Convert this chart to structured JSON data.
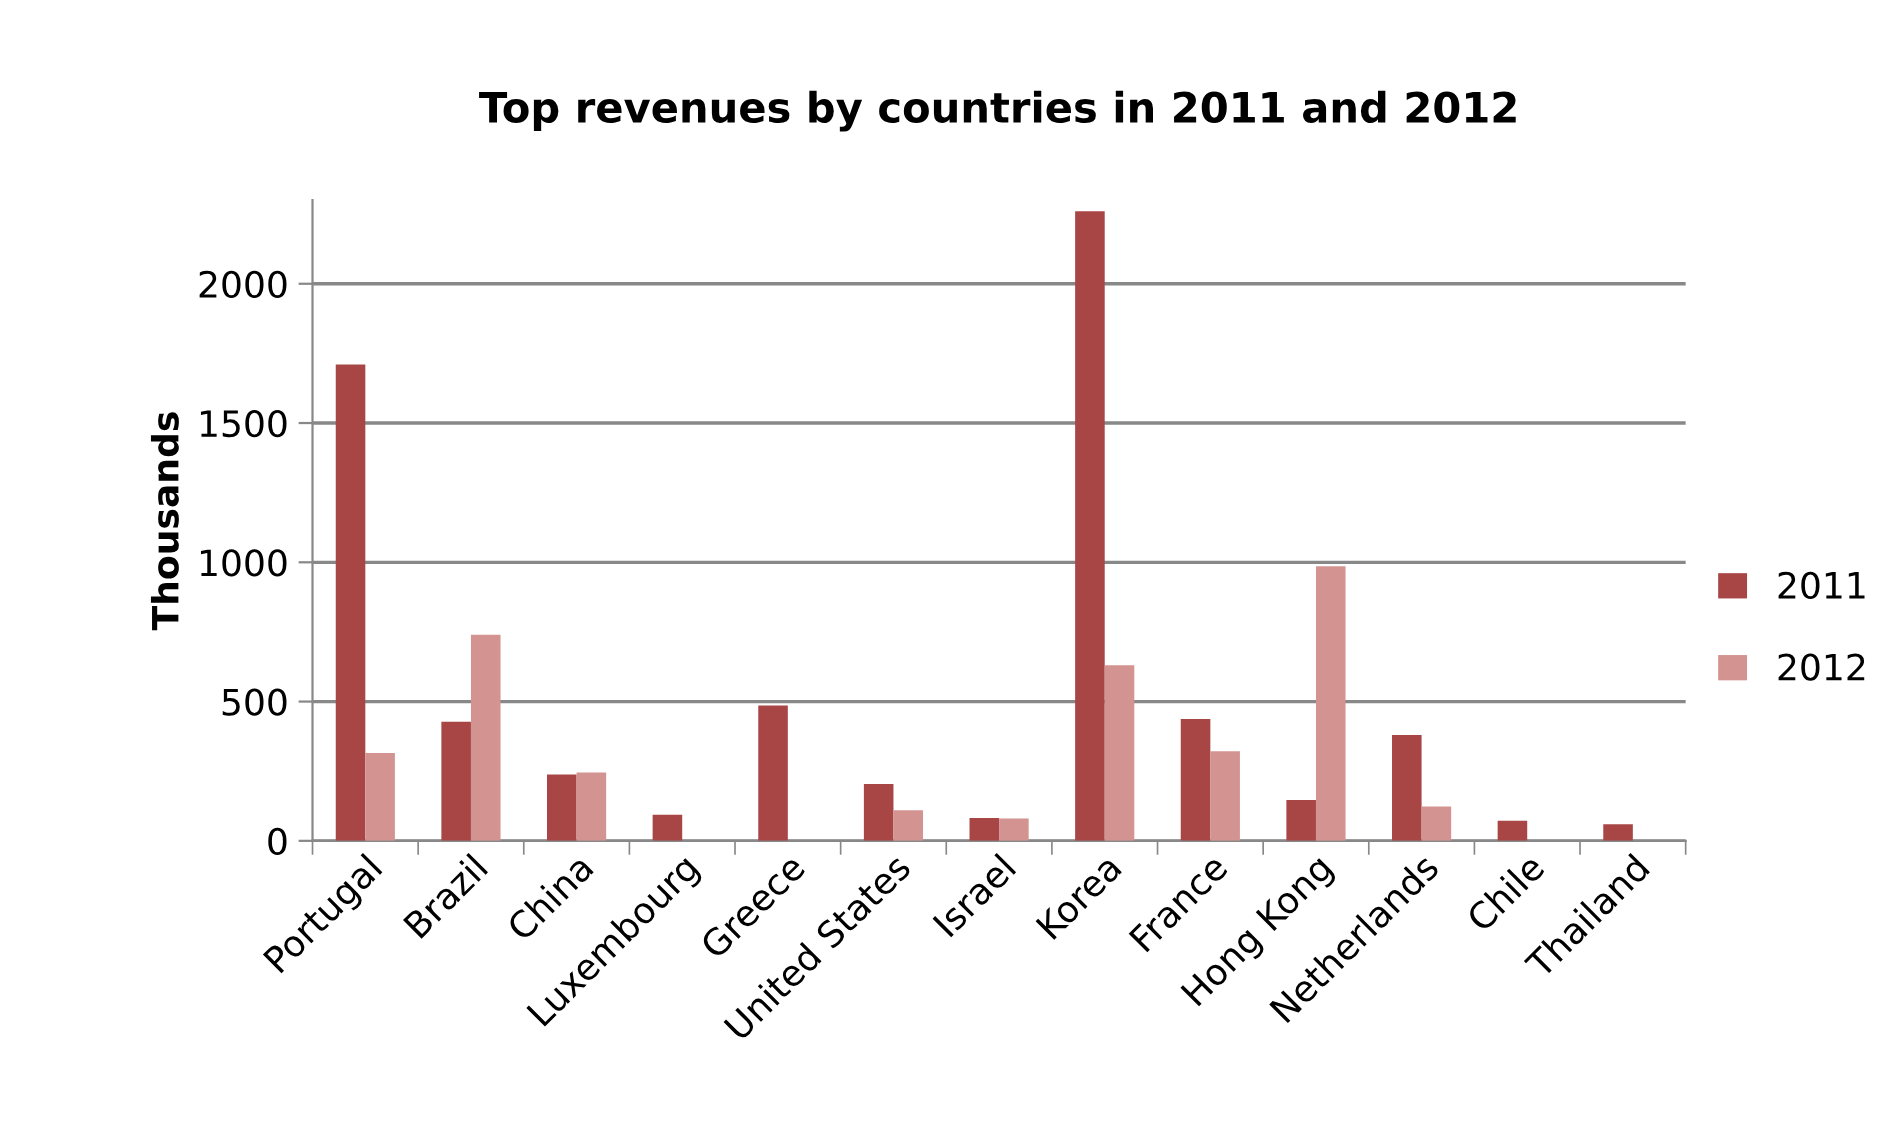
{
  "chart_data": {
    "type": "bar",
    "title": "Top revenues by countries in 2011 and 2012",
    "ylabel": "Thousands",
    "categories": [
      "Portugal",
      "Brazil",
      "China",
      "Luxembourg",
      "Greece",
      "United States",
      "Israel",
      "Korea",
      "France",
      "Hong Kong",
      "Netherlands",
      "Chile",
      "Thailand"
    ],
    "series": [
      {
        "name": "2011",
        "color": "#a84646",
        "values": [
          1710,
          428,
          238,
          94,
          486,
          204,
          82,
          2260,
          437,
          147,
          380,
          72,
          60
        ]
      },
      {
        "name": "2012",
        "color": "#d29391",
        "values": [
          315,
          740,
          245,
          null,
          null,
          110,
          80,
          630,
          322,
          986,
          123,
          null,
          null
        ]
      }
    ],
    "ylim": [
      0,
      2300
    ],
    "yticks": [
      0,
      500,
      1000,
      1500,
      2000
    ],
    "grid": "y",
    "legend": "right"
  }
}
